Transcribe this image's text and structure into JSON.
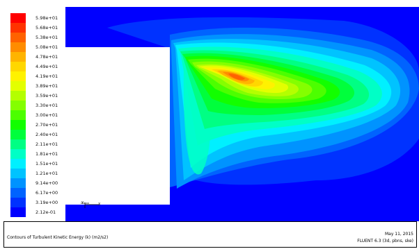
{
  "legend": {
    "levels": [
      {
        "label": "5.98e+01",
        "color": "#ff0000"
      },
      {
        "label": "5.68e+01",
        "color": "#ff3300"
      },
      {
        "label": "5.38e+01",
        "color": "#ff6200"
      },
      {
        "label": "5.08e+01",
        "color": "#ff8c00"
      },
      {
        "label": "4.78e+01",
        "color": "#ffb400"
      },
      {
        "label": "4.49e+01",
        "color": "#ffd700"
      },
      {
        "label": "4.19e+01",
        "color": "#fff200"
      },
      {
        "label": "3.89e+01",
        "color": "#e3ff00"
      },
      {
        "label": "3.59e+01",
        "color": "#b4ff00"
      },
      {
        "label": "3.30e+01",
        "color": "#84ff00"
      },
      {
        "label": "3.00e+01",
        "color": "#4cff00"
      },
      {
        "label": "2.70e+01",
        "color": "#12ff00"
      },
      {
        "label": "2.40e+01",
        "color": "#00ff3c"
      },
      {
        "label": "2.11e+01",
        "color": "#00ff84"
      },
      {
        "label": "1.81e+01",
        "color": "#00ffc6"
      },
      {
        "label": "1.51e+01",
        "color": "#00f0ff"
      },
      {
        "label": "1.21e+01",
        "color": "#00c3ff"
      },
      {
        "label": "9.14e+00",
        "color": "#0093ff"
      },
      {
        "label": "6.17e+00",
        "color": "#0063ff"
      },
      {
        "label": "3.19e+00",
        "color": "#0032ff"
      },
      {
        "label": "2.12e-01",
        "color": "#0000ff"
      }
    ]
  },
  "footer": {
    "caption": "Contours of Turbulent Kinetic Energy (k) (m2/s2)",
    "date": "May 11, 2015",
    "solver": "FLUENT 6.3 (3d, pbns, ske)"
  },
  "axes_triad": {
    "y": "Y",
    "x": "X"
  }
}
